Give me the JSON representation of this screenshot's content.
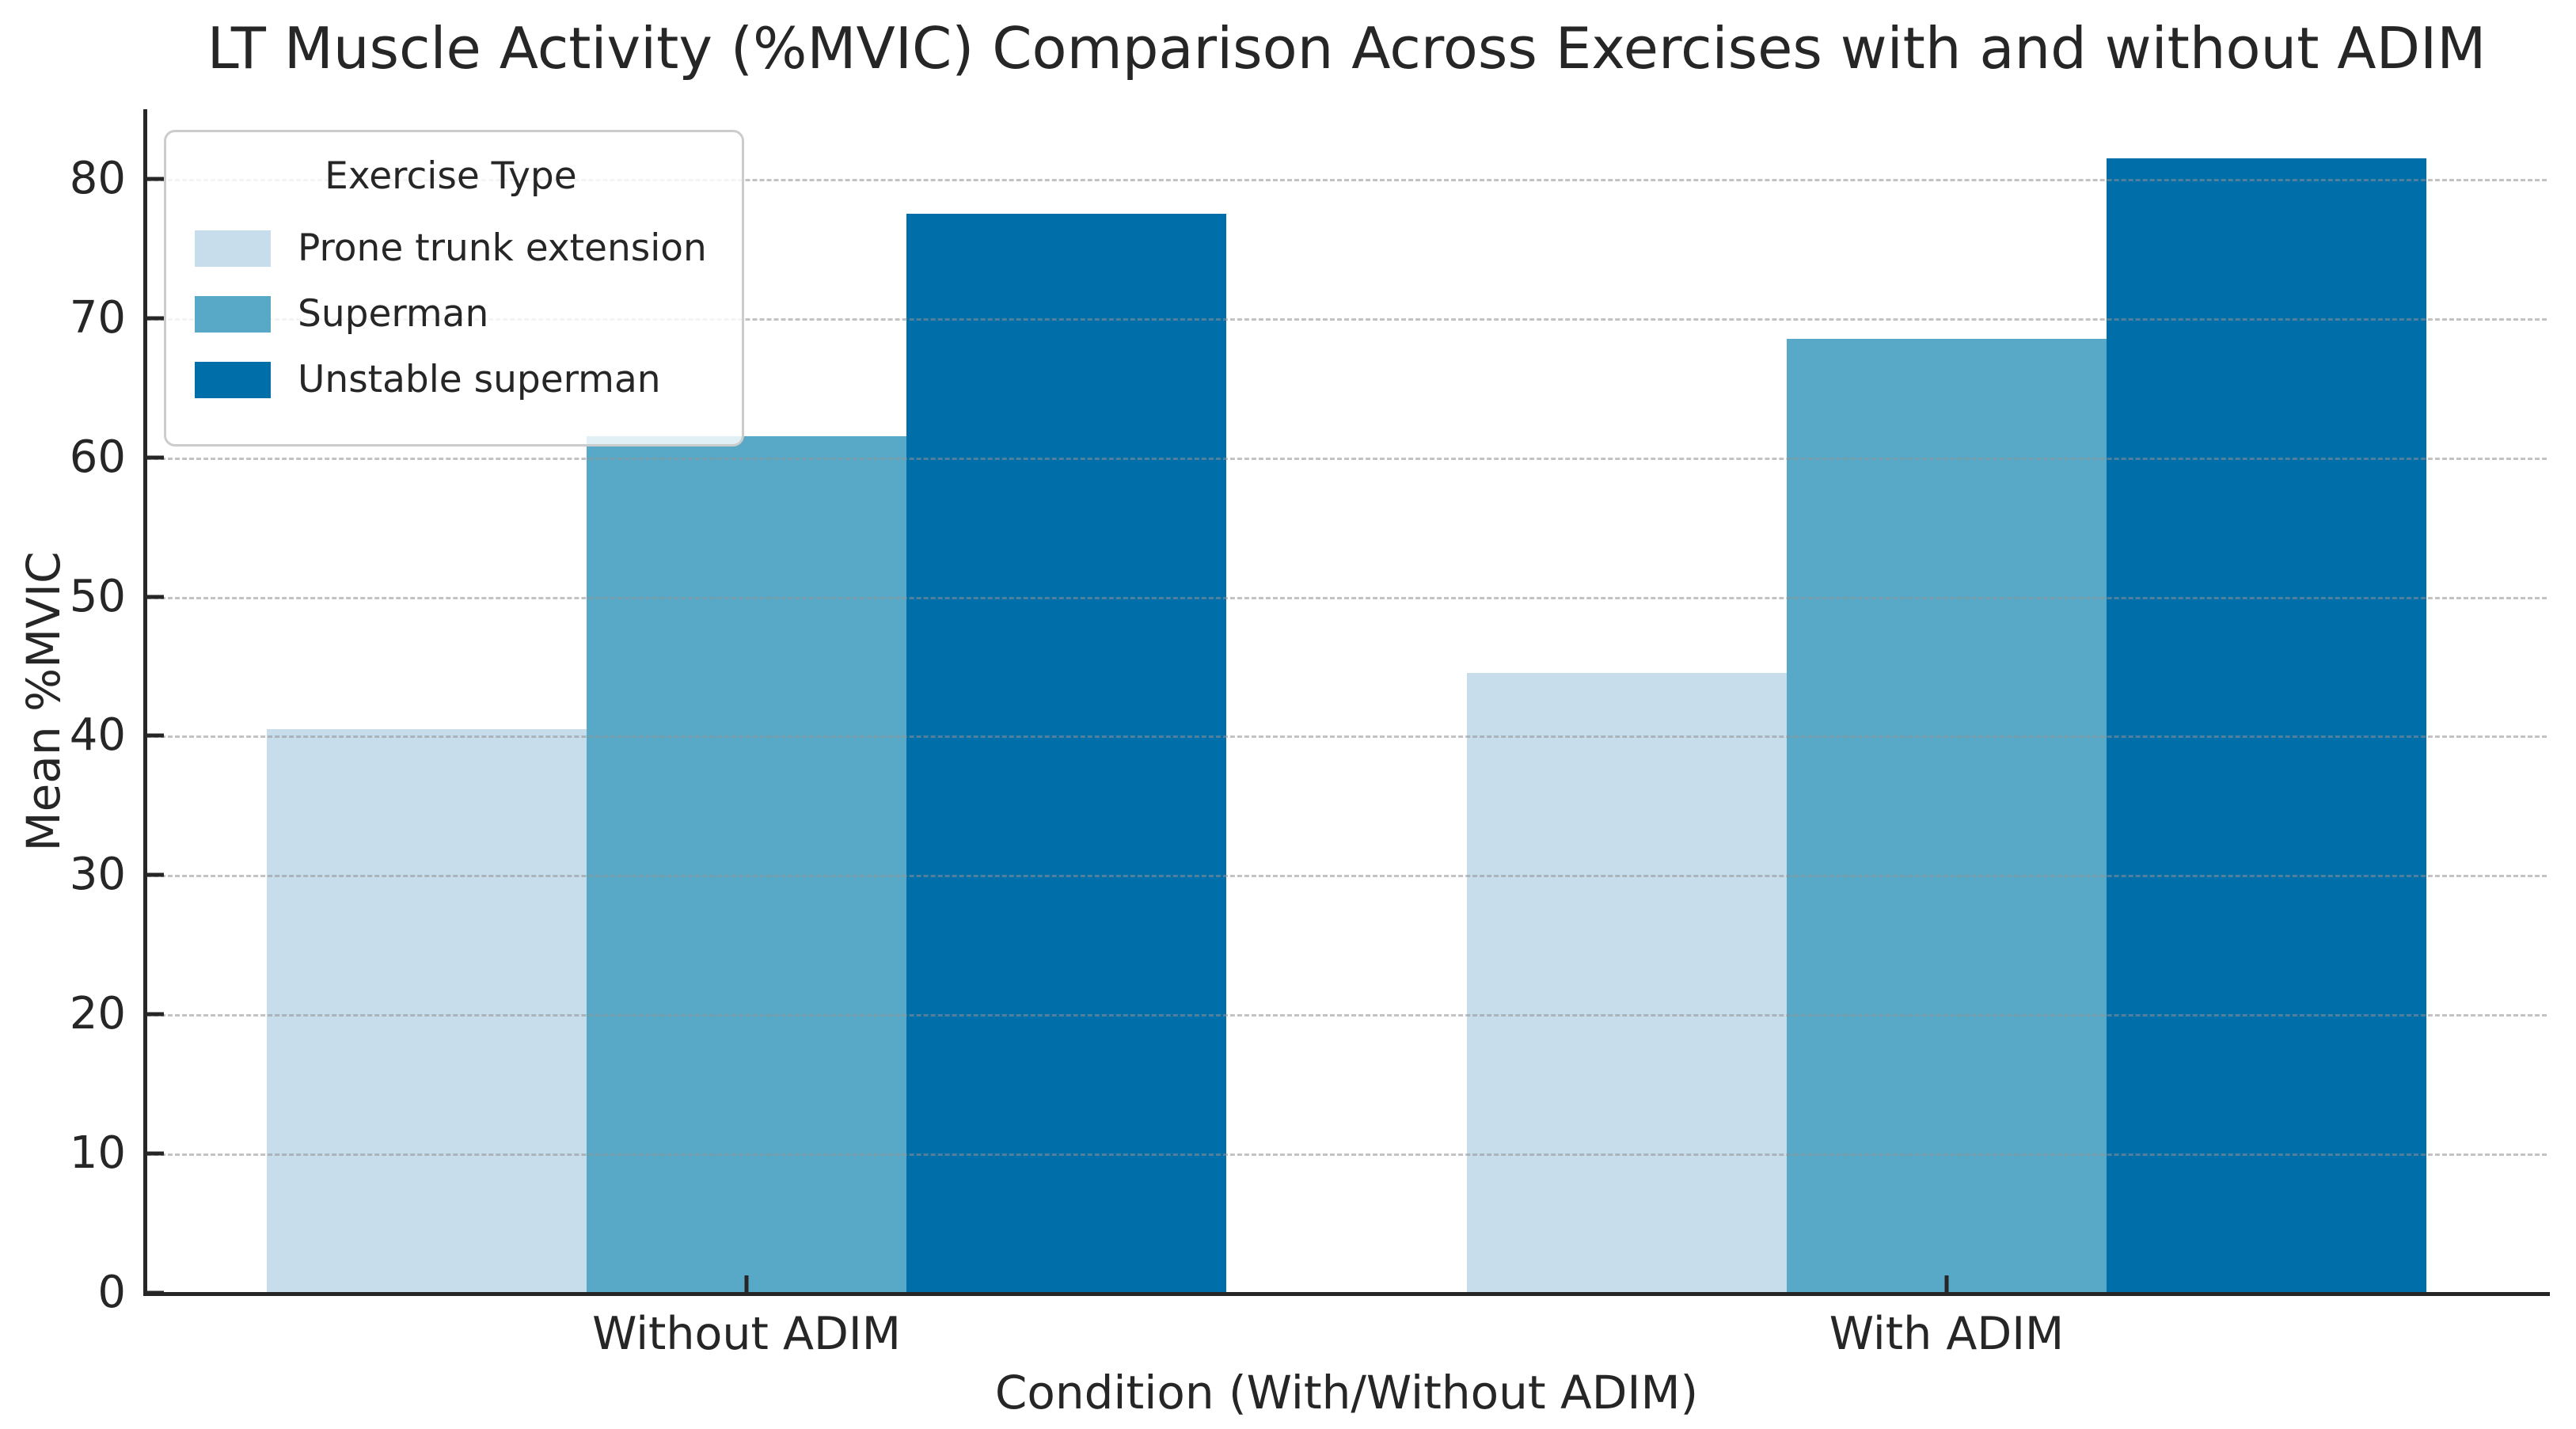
{
  "chart_data": {
    "type": "bar",
    "title": "LT Muscle Activity (%MVIC) Comparison Across Exercises with and without ADIM",
    "xlabel": "Condition (With/Without ADIM)",
    "ylabel": "Mean %MVIC",
    "categories": [
      "Without ADIM",
      "With ADIM"
    ],
    "series": [
      {
        "name": "Prone trunk extension",
        "values": [
          40.5,
          44.5
        ],
        "color": "#c7ddec"
      },
      {
        "name": "Superman",
        "values": [
          61.5,
          68.5
        ],
        "color": "#58a9c8"
      },
      {
        "name": "Unstable superman",
        "values": [
          77.5,
          81.5
        ],
        "color": "#006ea9"
      }
    ],
    "legend": {
      "title": "Exercise Type",
      "position": "upper-left"
    },
    "ylim": [
      0,
      85
    ],
    "yticks": [
      0,
      10,
      20,
      30,
      40,
      50,
      60,
      70,
      80
    ],
    "grid": "horizontal-dashed-above-bars",
    "group_width_fraction": 0.8,
    "colors": {
      "axis": "#262626",
      "grid": "#c9c9c9",
      "legend_border": "#cccccc",
      "text": "#262626"
    }
  }
}
